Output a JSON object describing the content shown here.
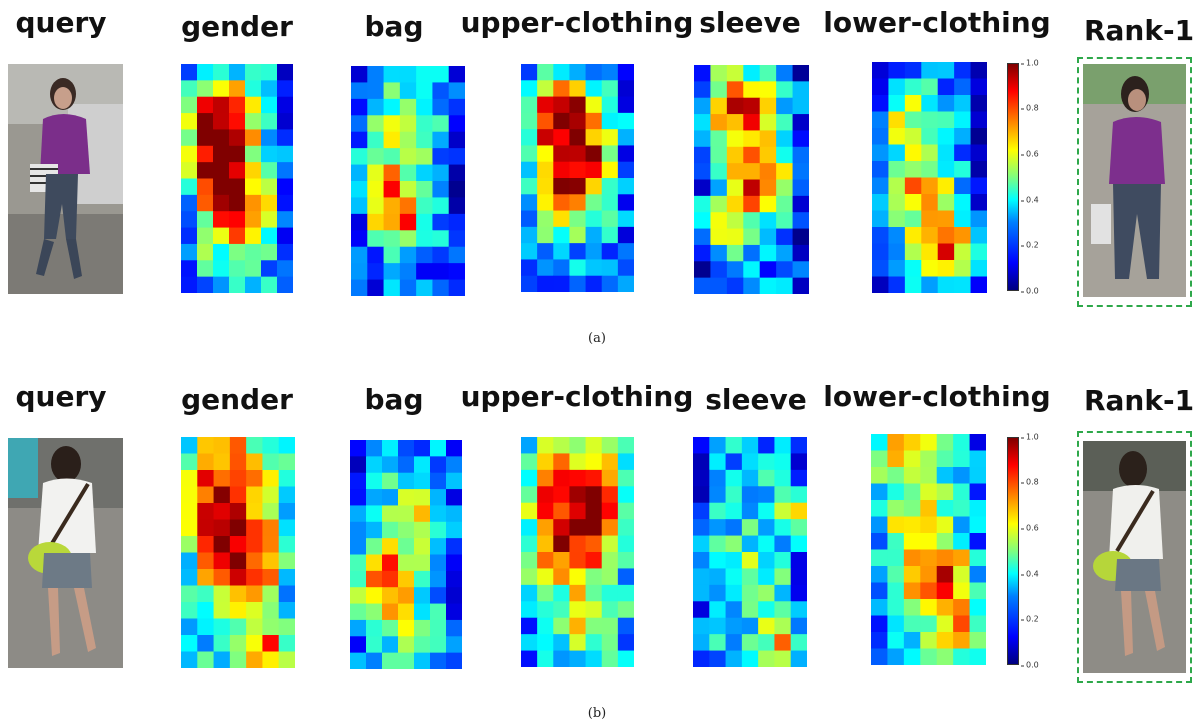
{
  "panels": [
    {
      "id": "a",
      "caption": "(a)",
      "titles": {
        "query": "query",
        "gender": "gender",
        "bag": "bag",
        "upper": "upper-clothing",
        "sleeve": "sleeve",
        "lower": "lower-clothing",
        "rank": "Rank-1"
      },
      "colorbar_ticks": [
        "1.0",
        "0.8",
        "0.6",
        "0.4",
        "0.2",
        "0.0"
      ]
    },
    {
      "id": "b",
      "caption": "(b)",
      "titles": {
        "query": "query",
        "gender": "gender",
        "bag": "bag",
        "upper": "upper-clothing",
        "sleeve": "sleeve",
        "lower": "lower-clothing",
        "rank": "Rank-1"
      },
      "colorbar_ticks": [
        "1.0",
        "0.8",
        "0.6",
        "0.4",
        "0.2",
        "0.0"
      ]
    }
  ],
  "colors": {
    "rank_border": "#2ea84a"
  }
}
